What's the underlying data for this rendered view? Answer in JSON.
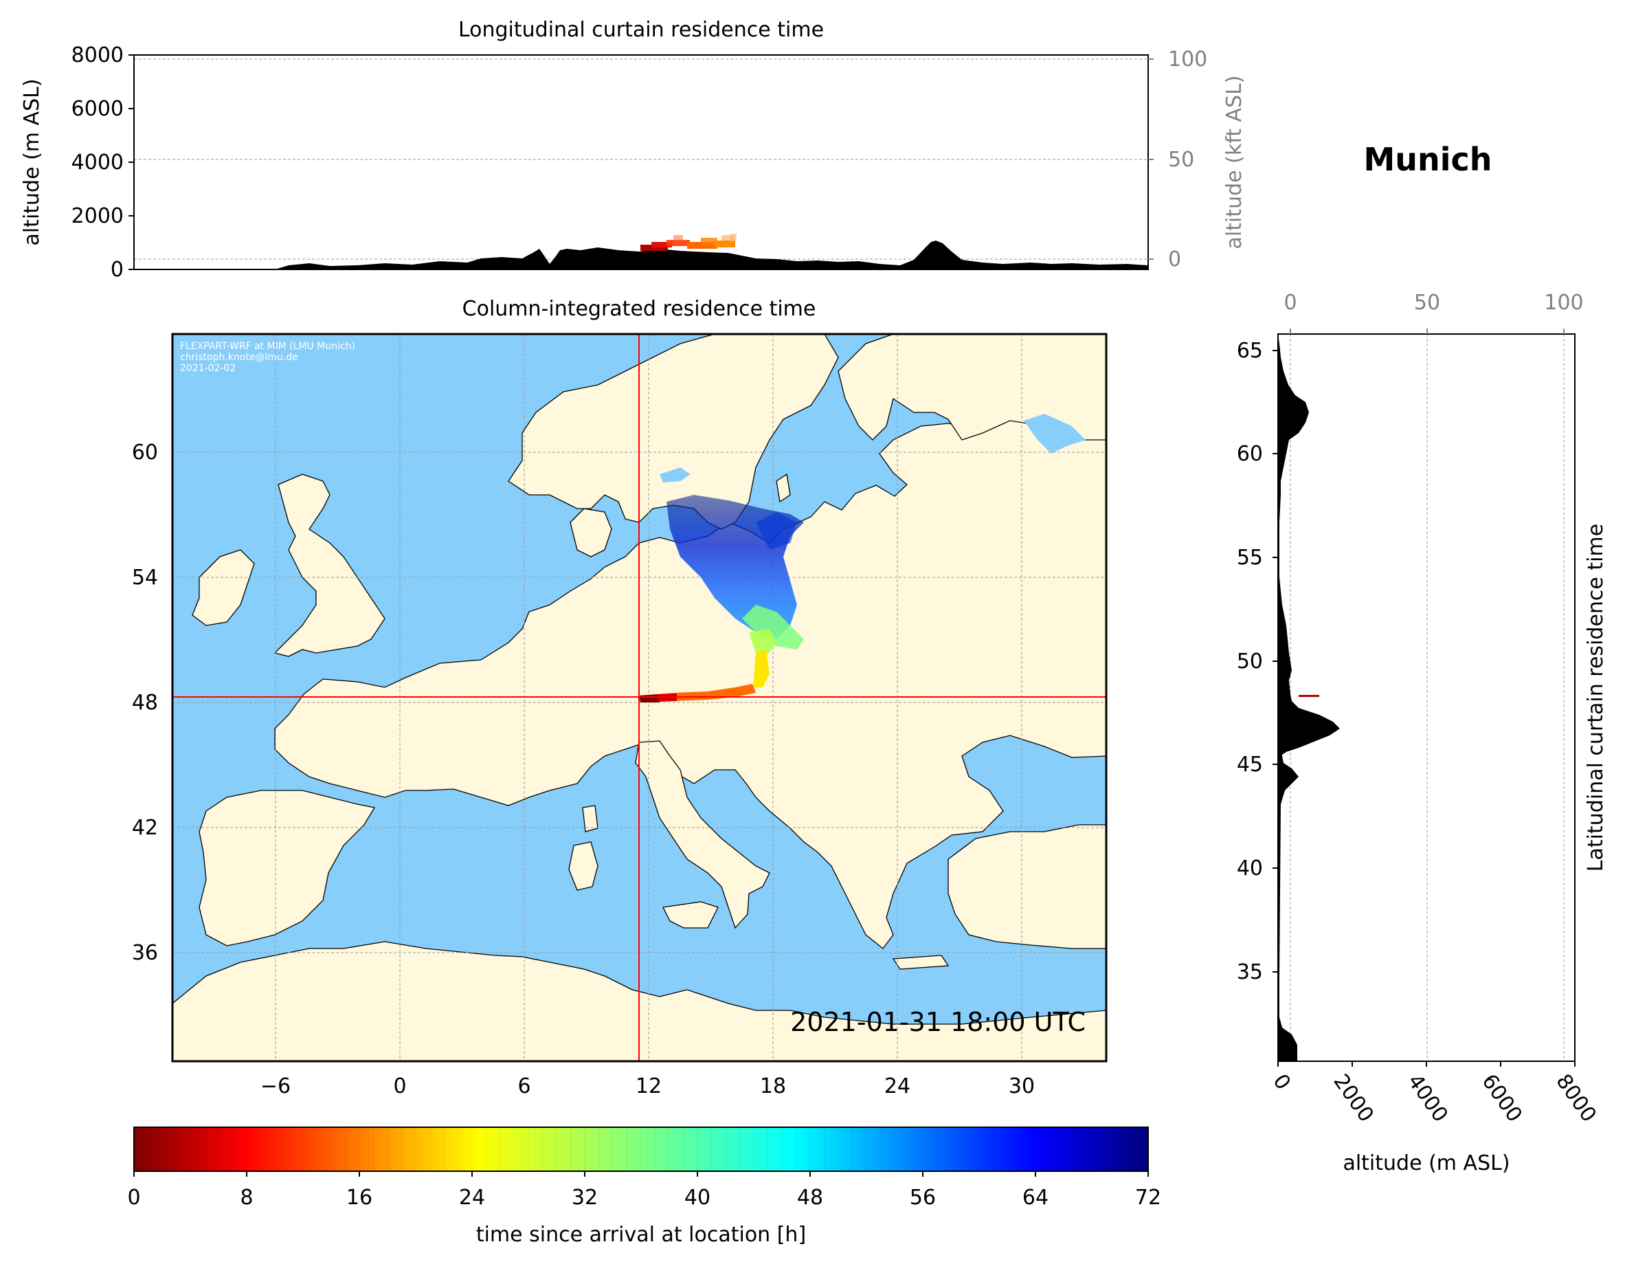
{
  "location": "Munich",
  "colors": {
    "ocean": "#87cefa",
    "land": "#fff8dc",
    "terrain": "#000000",
    "crosshair": "#ff0000",
    "kft_axis": "#808080"
  },
  "longitudinal_panel": {
    "title": "Longitudinal curtain residence time",
    "ylabel": "altitude (m ASL)",
    "ylabel_right": "altitude (kft ASL)",
    "yticks": [
      "0",
      "2000",
      "4000",
      "6000",
      "8000"
    ],
    "yticks_right": [
      "0",
      "50",
      "100"
    ]
  },
  "map_panel": {
    "title": "Column-integrated residence time",
    "credit_lines": [
      "FLEXPART-WRF at MIM (LMU Munich)",
      "christoph.knote@lmu.de",
      "2021-02-02"
    ],
    "timestamp": "2021-01-31 18:00 UTC",
    "xticks": [
      "−6",
      "0",
      "6",
      "12",
      "18",
      "24",
      "30"
    ],
    "yticks": [
      "60",
      "54",
      "48",
      "42",
      "36"
    ],
    "crosshair_lon": 11.6,
    "crosshair_lat": 48.1
  },
  "latitudinal_panel": {
    "ylabel": "Latitudinal curtain residence time",
    "xlabel": "altitude (m ASL)",
    "yticks": [
      "65",
      "60",
      "55",
      "50",
      "45",
      "40",
      "35"
    ],
    "xticks_bottom": [
      "0",
      "2000",
      "4000",
      "6000",
      "8000"
    ],
    "xticks_top": [
      "0",
      "50",
      "100"
    ]
  },
  "colorbar": {
    "label": "time since arrival at location [h]",
    "ticks": [
      "0",
      "8",
      "16",
      "24",
      "32",
      "40",
      "48",
      "56",
      "64",
      "72"
    ],
    "colormap": "jet_r",
    "range": [
      0,
      72
    ]
  }
}
